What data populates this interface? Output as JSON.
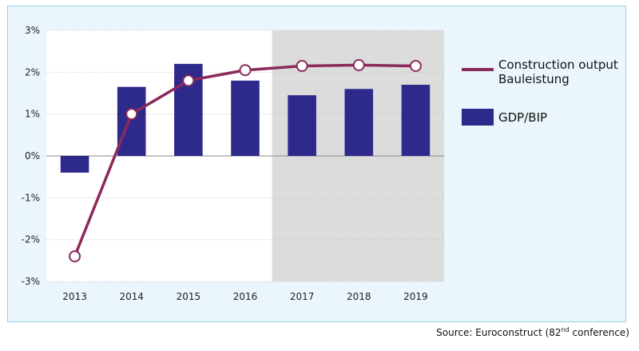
{
  "chart_data": {
    "type": "bar",
    "categories": [
      "2013",
      "2014",
      "2015",
      "2016",
      "2017",
      "2018",
      "2019"
    ],
    "series": [
      {
        "name": "GDP/BIP",
        "type": "bar",
        "values": [
          -0.4,
          1.65,
          2.2,
          1.8,
          1.45,
          1.6,
          1.7
        ]
      },
      {
        "name": "Construction output Bauleistung",
        "type": "line",
        "values": [
          -2.4,
          1.0,
          1.8,
          2.05,
          2.15,
          2.17,
          2.15
        ]
      }
    ],
    "y_ticks": [
      "3%",
      "2%",
      "1%",
      "0%",
      "-1%",
      "-2%",
      "-3%"
    ],
    "ylim": [
      -3,
      3
    ],
    "forecast_categories": [
      "2017",
      "2018",
      "2019"
    ],
    "legend": {
      "line_label_1": "Construction output",
      "line_label_2": "Bauleistung",
      "bar_label": "GDP/BIP"
    },
    "colors": {
      "bar": "#2e2a8c",
      "line": "#8a2a5c",
      "forecast_bg": "#dcdcdc",
      "plot_bg": "#ffffff"
    }
  },
  "source": {
    "prefix": "Source: Euroconstruct (82",
    "sup": "nd",
    "suffix": " conference)"
  }
}
